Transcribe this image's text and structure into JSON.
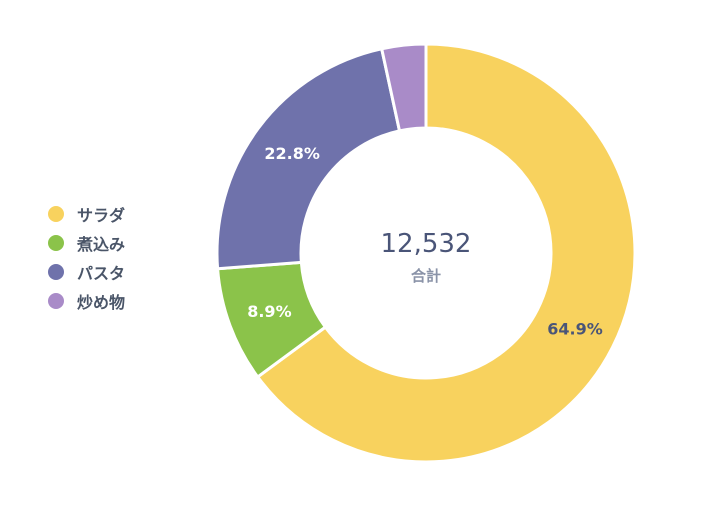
{
  "chart_data": {
    "type": "pie",
    "variant": "donut",
    "categories": [
      "サラダ",
      "煮込み",
      "パスタ",
      "炒め物"
    ],
    "values": [
      64.9,
      8.9,
      22.8,
      3.4
    ],
    "value_unit": "%",
    "data_labels": [
      "64.9%",
      "8.9%",
      "22.8%",
      ""
    ],
    "colors": [
      "#f8d25e",
      "#8bc34a",
      "#6f72ab",
      "#a98bc8"
    ],
    "label_colors": [
      "#4a5578",
      "#ffffff",
      "#ffffff",
      "#ffffff"
    ],
    "center_value": "12,532",
    "center_label": "合計",
    "legend_position": "left"
  }
}
